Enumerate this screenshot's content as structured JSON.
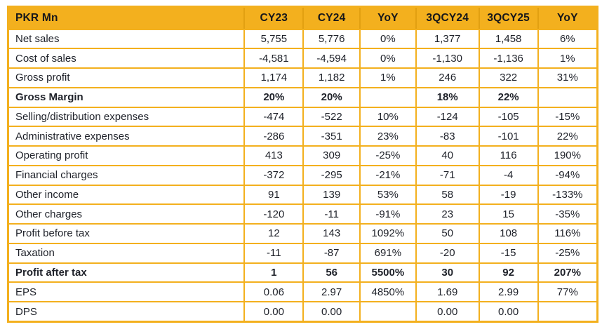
{
  "colors": {
    "gold": "#F3B01E",
    "gold_dark": "#E2A011",
    "text": "#1E2129",
    "header_text": "#15161A"
  },
  "table": {
    "columns": [
      "PKR Mn",
      "CY23",
      "CY24",
      "YoY",
      "3QCY24",
      "3QCY25",
      "YoY"
    ],
    "rows": [
      {
        "label": "Net sales",
        "values": [
          "5,755",
          "5,776",
          "0%",
          "1,377",
          "1,458",
          "6%"
        ],
        "bold": false
      },
      {
        "label": "Cost of sales",
        "values": [
          "-4,581",
          "-4,594",
          "0%",
          "-1,130",
          "-1,136",
          "1%"
        ],
        "bold": false
      },
      {
        "label": "Gross profit",
        "values": [
          "1,174",
          "1,182",
          "1%",
          "246",
          "322",
          "31%"
        ],
        "bold": false
      },
      {
        "label": "Gross Margin",
        "values": [
          "20%",
          "20%",
          "",
          "18%",
          "22%",
          ""
        ],
        "bold": true
      },
      {
        "label": "Selling/distribution expenses",
        "values": [
          "-474",
          "-522",
          "10%",
          "-124",
          "-105",
          "-15%"
        ],
        "bold": false
      },
      {
        "label": "Administrative expenses",
        "values": [
          "-286",
          "-351",
          "23%",
          "-83",
          "-101",
          "22%"
        ],
        "bold": false
      },
      {
        "label": "Operating profit",
        "values": [
          "413",
          "309",
          "-25%",
          "40",
          "116",
          "190%"
        ],
        "bold": false
      },
      {
        "label": "Financial charges",
        "values": [
          "-372",
          "-295",
          "-21%",
          "-71",
          "-4",
          "-94%"
        ],
        "bold": false
      },
      {
        "label": "Other income",
        "values": [
          "91",
          "139",
          "53%",
          "58",
          "-19",
          "-133%"
        ],
        "bold": false
      },
      {
        "label": "Other charges",
        "values": [
          "-120",
          "-11",
          "-91%",
          "23",
          "15",
          "-35%"
        ],
        "bold": false
      },
      {
        "label": "Profit before tax",
        "values": [
          "12",
          "143",
          "1092%",
          "50",
          "108",
          "116%"
        ],
        "bold": false
      },
      {
        "label": "Taxation",
        "values": [
          "-11",
          "-87",
          "691%",
          "-20",
          "-15",
          "-25%"
        ],
        "bold": false
      },
      {
        "label": "Profit after tax",
        "values": [
          "1",
          "56",
          "5500%",
          "30",
          "92",
          "207%"
        ],
        "bold": true
      },
      {
        "label": "EPS",
        "values": [
          "0.06",
          "2.97",
          "4850%",
          "1.69",
          "2.99",
          "77%"
        ],
        "bold": false
      },
      {
        "label": "DPS",
        "values": [
          "0.00",
          "0.00",
          "",
          "0.00",
          "0.00",
          ""
        ],
        "bold": false
      }
    ]
  }
}
